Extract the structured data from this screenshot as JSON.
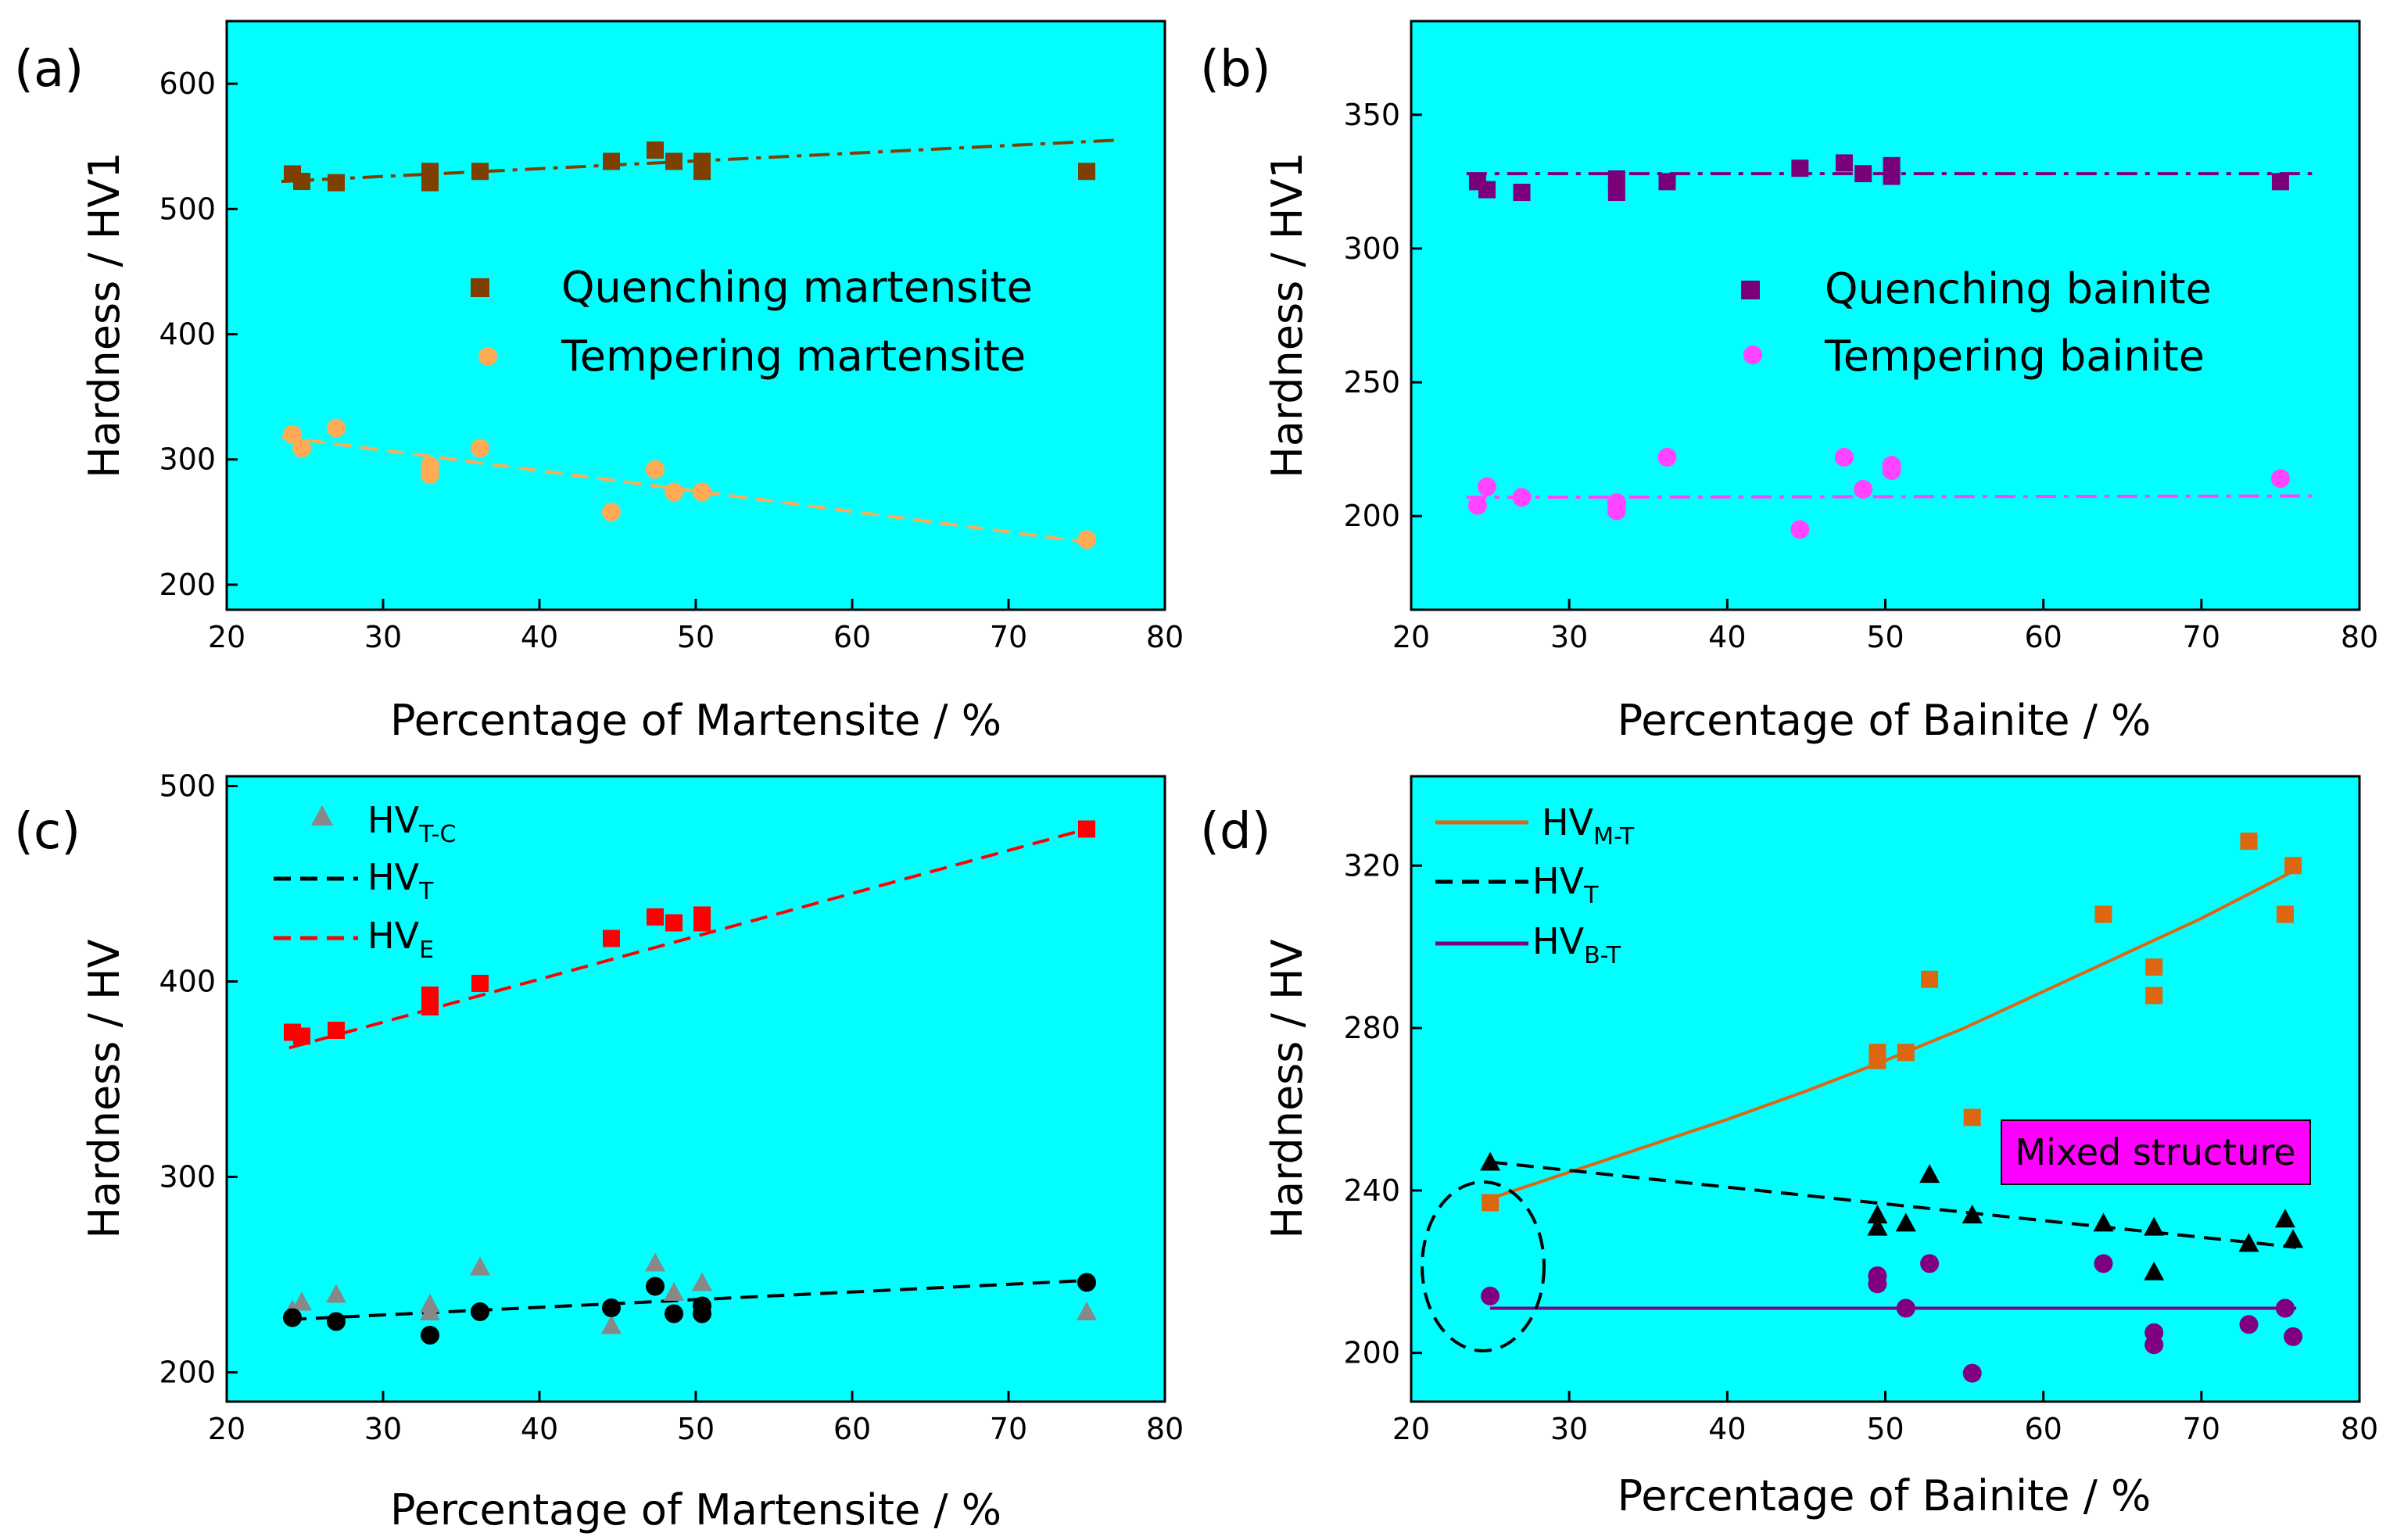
{
  "colors": {
    "plot_bg": "#00ffff",
    "quench_martensite": "#7f3f00",
    "temper_martensite": "#ffaa55",
    "quench_bainite": "#7a007a",
    "temper_bainite": "#ff44ff",
    "hv_tc": "#888888",
    "hv_t": "#000000",
    "hv_e": "#ff0000",
    "hv_mt": "#dd6611",
    "hv_bt": "#800080",
    "box_fill": "#ff00ff"
  },
  "chart_data": [
    {
      "panel": "(a)",
      "type": "scatter",
      "xlabel": "Percentage of Martensite / %",
      "ylabel": "Hardness / HV1",
      "xlim": [
        20,
        80
      ],
      "ylim": [
        180,
        650
      ],
      "xticks": [
        20,
        30,
        40,
        50,
        60,
        70,
        80
      ],
      "yticks": [
        200,
        300,
        400,
        500,
        600
      ],
      "series": [
        {
          "name": "Quenching martensite",
          "marker": "square",
          "color_key": "quench_martensite",
          "x": [
            24.2,
            24.8,
            27,
            33,
            33,
            36.2,
            44.6,
            47.4,
            48.6,
            50.4,
            50.4,
            75
          ],
          "y": [
            528,
            522,
            521,
            530,
            521,
            530,
            538,
            547,
            538,
            538,
            530,
            530
          ]
        },
        {
          "name": "Tempering martensite",
          "marker": "circle",
          "color_key": "temper_martensite",
          "x": [
            24.2,
            24.8,
            27,
            33,
            33,
            36.2,
            44.6,
            47.4,
            48.6,
            50.4,
            50.4,
            75
          ],
          "y": [
            320,
            309,
            325,
            295,
            288,
            309,
            258,
            292,
            274,
            274,
            274,
            236
          ]
        }
      ],
      "fits": [
        {
          "style": "dashdot",
          "color_key": "quench_martensite",
          "x": [
            23.5,
            77
          ],
          "y": [
            522,
            555
          ]
        },
        {
          "style": "dashed",
          "color_key": "temper_martensite",
          "x": [
            23.5,
            75
          ],
          "y": [
            318,
            234
          ]
        }
      ]
    },
    {
      "panel": "(b)",
      "type": "scatter",
      "xlabel": "Percentage of Bainite / %",
      "ylabel": "Hardness / HV1",
      "xlim": [
        20,
        80
      ],
      "ylim": [
        165,
        385
      ],
      "xticks": [
        20,
        30,
        40,
        50,
        60,
        70,
        80
      ],
      "yticks": [
        200,
        250,
        300,
        350
      ],
      "series": [
        {
          "name": "Quenching bainite",
          "marker": "square",
          "color_key": "quench_bainite",
          "x": [
            24.2,
            24.8,
            27,
            33,
            33,
            36.2,
            44.6,
            47.4,
            48.6,
            50.4,
            50.4,
            75
          ],
          "y": [
            325,
            322,
            321,
            326,
            321,
            325,
            330,
            332,
            328,
            331,
            327,
            325
          ]
        },
        {
          "name": "Tempering bainite",
          "marker": "circle",
          "color_key": "temper_bainite",
          "x": [
            24.2,
            24.8,
            27,
            33,
            33,
            36.2,
            44.6,
            47.4,
            48.6,
            50.4,
            50.4,
            75
          ],
          "y": [
            204,
            211,
            207,
            205,
            202,
            222,
            195,
            222,
            210,
            219,
            217,
            214
          ]
        }
      ],
      "fits": [
        {
          "style": "dashdot",
          "color_key": "quench_bainite",
          "x": [
            23.5,
            77
          ],
          "y": [
            328,
            328
          ]
        },
        {
          "style": "dashdot",
          "color_key": "temper_bainite",
          "x": [
            23.5,
            77
          ],
          "y": [
            207,
            207.5
          ]
        }
      ]
    },
    {
      "panel": "(c)",
      "type": "scatter",
      "xlabel": "Percentage of Martensite / %",
      "ylabel": "Hardness / HV",
      "xlim": [
        20,
        80
      ],
      "ylim": [
        185,
        505
      ],
      "xticks": [
        20,
        30,
        40,
        50,
        60,
        70,
        80
      ],
      "yticks": [
        200,
        300,
        400,
        500
      ],
      "series": [
        {
          "name": "HV_T-C",
          "marker": "triangle",
          "color_key": "hv_tc",
          "x": [
            24.2,
            24.8,
            27,
            33,
            33,
            36.2,
            44.6,
            47.4,
            48.6,
            50.4,
            75
          ],
          "y": [
            232,
            236,
            240,
            235,
            231,
            254,
            224,
            256,
            241,
            246,
            231
          ]
        },
        {
          "name": "HV_T points",
          "marker": "circle",
          "color_key": "hv_t",
          "x": [
            24.2,
            27,
            33,
            36.2,
            44.6,
            47.4,
            48.6,
            50.4,
            50.4,
            75
          ],
          "y": [
            228,
            226,
            219,
            231,
            233,
            244,
            230,
            234,
            230,
            246
          ]
        },
        {
          "name": "HV_E points",
          "marker": "square",
          "color_key": "hv_e",
          "x": [
            24.2,
            24.8,
            27,
            33,
            33,
            36.2,
            44.6,
            47.4,
            48.6,
            50.4,
            50.4,
            75
          ],
          "y": [
            374,
            372,
            375,
            393,
            387,
            399,
            422,
            433,
            430,
            434,
            430,
            478
          ]
        }
      ],
      "fits": [
        {
          "style": "dashed",
          "color_key": "hv_t",
          "x": [
            24,
            75
          ],
          "y": [
            227,
            247
          ]
        },
        {
          "style": "dashed",
          "color_key": "hv_e",
          "x": [
            24,
            75
          ],
          "y": [
            366,
            478
          ]
        }
      ],
      "legend": [
        {
          "label": "HV",
          "sub": "T-C",
          "style": "triangle",
          "color_key": "hv_tc"
        },
        {
          "label": "HV",
          "sub": "T",
          "style": "dashed",
          "color_key": "hv_t"
        },
        {
          "label": "HV",
          "sub": "E",
          "style": "dashed",
          "color_key": "hv_e"
        }
      ]
    },
    {
      "panel": "(d)",
      "type": "scatter",
      "xlabel": "Percentage of Bainite / %",
      "ylabel": "Hardness / HV",
      "xlim": [
        20,
        80
      ],
      "ylim": [
        188,
        342
      ],
      "xticks": [
        20,
        30,
        40,
        50,
        60,
        70,
        80
      ],
      "yticks": [
        200,
        240,
        280,
        320
      ],
      "annotation": "Mixed structure",
      "series": [
        {
          "name": "HV_M-T points",
          "marker": "square",
          "color_key": "hv_mt",
          "x": [
            25,
            49.5,
            49.5,
            51.3,
            52.8,
            55.5,
            63.8,
            67,
            67,
            73,
            75.3,
            75.8
          ],
          "y": [
            237,
            274,
            272,
            274,
            292,
            258,
            308,
            295,
            288,
            326,
            308,
            320
          ]
        },
        {
          "name": "HV_T points",
          "marker": "triangle",
          "color_key": "hv_t",
          "x": [
            25,
            49.5,
            49.5,
            51.3,
            52.8,
            55.5,
            63.8,
            67,
            67,
            73,
            75.3,
            75.8
          ],
          "y": [
            247,
            234,
            231,
            232,
            244,
            234,
            232,
            231,
            220,
            227,
            233,
            228
          ]
        },
        {
          "name": "HV_B-T points",
          "marker": "circle",
          "color_key": "hv_bt",
          "x": [
            25,
            49.5,
            49.5,
            51.3,
            52.8,
            55.5,
            63.8,
            67,
            67,
            73,
            75.3,
            75.8
          ],
          "y": [
            214,
            219,
            217,
            211,
            222,
            195,
            222,
            205,
            202,
            207,
            211,
            204
          ]
        }
      ],
      "fits": [
        {
          "style": "solid",
          "color_key": "hv_mt",
          "x": [
            25,
            30,
            35,
            40,
            45,
            50,
            55,
            60,
            65,
            70,
            76
          ],
          "y": [
            238,
            244.5,
            251,
            257.5,
            264.5,
            272,
            280,
            289,
            298,
            307,
            319
          ]
        },
        {
          "style": "dashed",
          "color_key": "hv_t",
          "x": [
            25,
            76
          ],
          "y": [
            247,
            226
          ]
        },
        {
          "style": "solid",
          "color_key": "hv_bt",
          "x": [
            25,
            76
          ],
          "y": [
            211,
            211
          ]
        }
      ],
      "legend": [
        {
          "label": "HV",
          "sub": "M-T",
          "style": "solid",
          "color_key": "hv_mt"
        },
        {
          "label": "HV",
          "sub": "T",
          "style": "dashed",
          "color_key": "hv_t"
        },
        {
          "label": "HV",
          "sub": "B-T",
          "style": "solid",
          "color_key": "hv_bt"
        }
      ]
    }
  ]
}
